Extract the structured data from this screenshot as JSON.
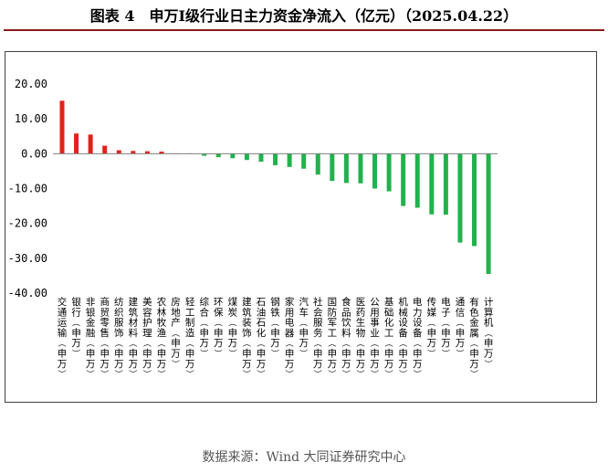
{
  "figure": {
    "title": "图表 4　申万Ⅰ级行业日主力资金净流入（亿元）（2025.04.22）",
    "source": "数据来源：Wind 大同证券研究中心"
  },
  "colors": {
    "positive": "#e3211c",
    "negative": "#22b14c",
    "axis": "#7f7f7f",
    "title_rule": "#8b1c1c"
  },
  "chart_data": {
    "type": "bar",
    "title": "",
    "xlabel": "",
    "ylabel": "",
    "ylim": [
      -40,
      20
    ],
    "yticks": [
      20,
      10,
      0,
      -10,
      -20,
      -30,
      -40
    ],
    "ytick_labels": [
      "20.00",
      "10.00",
      "0.00",
      "-10.00",
      "-20.00",
      "-30.00",
      "-40.00"
    ],
    "grid": false,
    "legend": "none",
    "categories": [
      "交通运输(申万)",
      "银行(申万)",
      "非银金融(申万)",
      "商贸零售(申万)",
      "纺织服饰(申万)",
      "建筑材料(申万)",
      "美容护理(申万)",
      "农林牧渔(申万)",
      "房地产(申万)",
      "轻工制造(申万)",
      "综合(申万)",
      "环保(申万)",
      "煤炭(申万)",
      "建筑装饰(申万)",
      "石油石化(申万)",
      "钢铁(申万)",
      "家用电器(申万)",
      "汽车(申万)",
      "社会服务(申万)",
      "国防军工(申万)",
      "食品饮料(申万)",
      "医药生物(申万)",
      "公用事业(申万)",
      "基础化工(申万)",
      "机械设备(申万)",
      "电力设备(申万)",
      "传媒(申万)",
      "电子(申万)",
      "通信(申万)",
      "有色金属(申万)",
      "计算机(申万)"
    ],
    "values": [
      15.2,
      5.8,
      5.5,
      2.3,
      1.0,
      0.8,
      0.7,
      0.6,
      0.1,
      0.1,
      -0.6,
      -1.0,
      -1.3,
      -1.8,
      -2.3,
      -3.3,
      -3.8,
      -4.3,
      -6.0,
      -7.8,
      -8.4,
      -8.5,
      -10.0,
      -10.8,
      -15.0,
      -15.5,
      -17.4,
      -17.5,
      -25.5,
      -26.5,
      -34.5
    ]
  }
}
